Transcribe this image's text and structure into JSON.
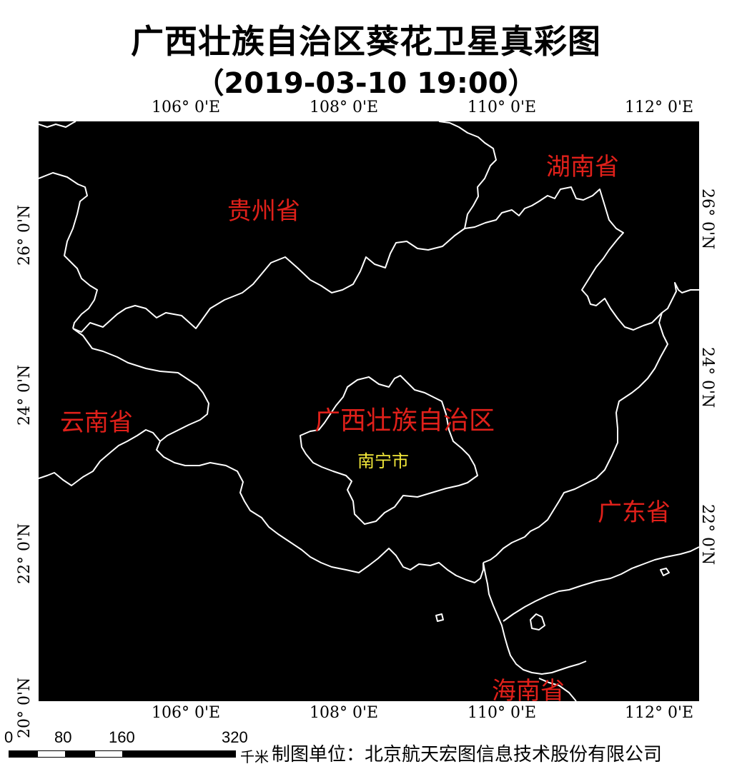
{
  "title": "广西壮族自治区葵花卫星真彩图",
  "datetime": "（2019-03-10 19:00）",
  "axes": {
    "lon_ticks": [
      "106° 0'E",
      "108° 0'E",
      "110° 0'E",
      "112° 0'E"
    ],
    "lat_ticks": [
      "26° 0'N",
      "24° 0'N",
      "22° 0'N",
      "20° 0'N"
    ]
  },
  "labels": {
    "hunan": "湖南省",
    "guizhou": "贵州省",
    "yunnan": "云南省",
    "guangxi": "广西壮族自治区",
    "nanning": "南宁市",
    "guangdong": "广东省",
    "hainan": "海南省"
  },
  "scale": {
    "ticks": [
      "0",
      "80",
      "160",
      "320"
    ],
    "unit": "千米"
  },
  "credit": "制图单位：北京航天宏图信息技术股份有限公司",
  "colors": {
    "background": "#000000",
    "boundary": "#ffffff",
    "province_label": "#e0201a",
    "city_label": "#f2e83a"
  }
}
